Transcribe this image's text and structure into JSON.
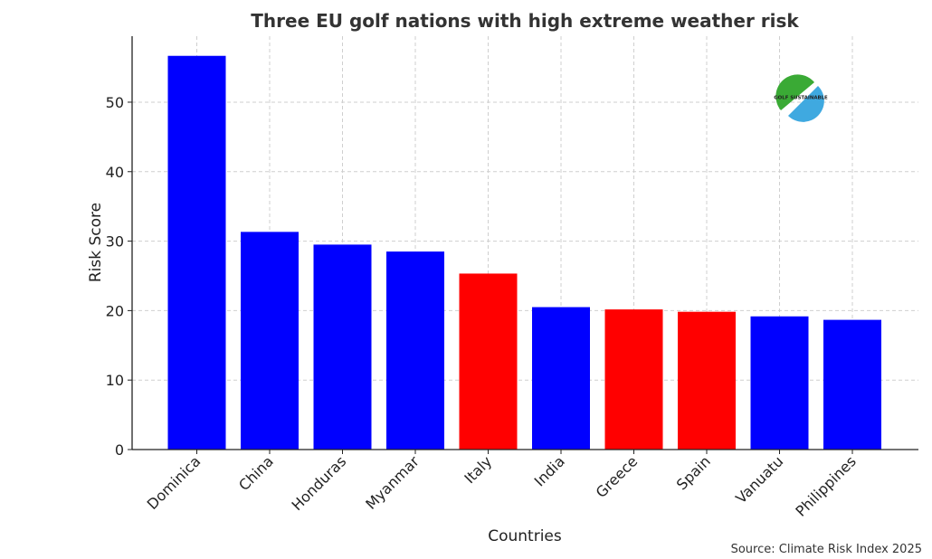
{
  "chart_data": {
    "type": "bar",
    "title": "Three EU golf nations with high extreme weather risk",
    "xlabel": "Countries",
    "ylabel": "Risk Score",
    "ylim": [
      0,
      59.5
    ],
    "yticks": [
      0,
      10,
      20,
      30,
      40,
      50
    ],
    "grid": true,
    "categories": [
      "Dominica",
      "China",
      "Honduras",
      "Myanmar",
      "Italy",
      "India",
      "Greece",
      "Spain",
      "Vanuatu",
      "Philippines"
    ],
    "values": [
      56.67,
      31.33,
      29.5,
      28.5,
      25.33,
      20.5,
      20.17,
      19.83,
      19.17,
      18.67
    ],
    "bar_colors": [
      "#0000ff",
      "#0000ff",
      "#0000ff",
      "#0000ff",
      "#ff0000",
      "#0000ff",
      "#ff0000",
      "#ff0000",
      "#0000ff",
      "#0000ff"
    ],
    "source_note": "Source: Climate Risk Index 2025"
  },
  "logo": {
    "text": "GOLF SUSTAINABLE",
    "colors": [
      "#3aaa35",
      "#3fa9e0"
    ]
  }
}
